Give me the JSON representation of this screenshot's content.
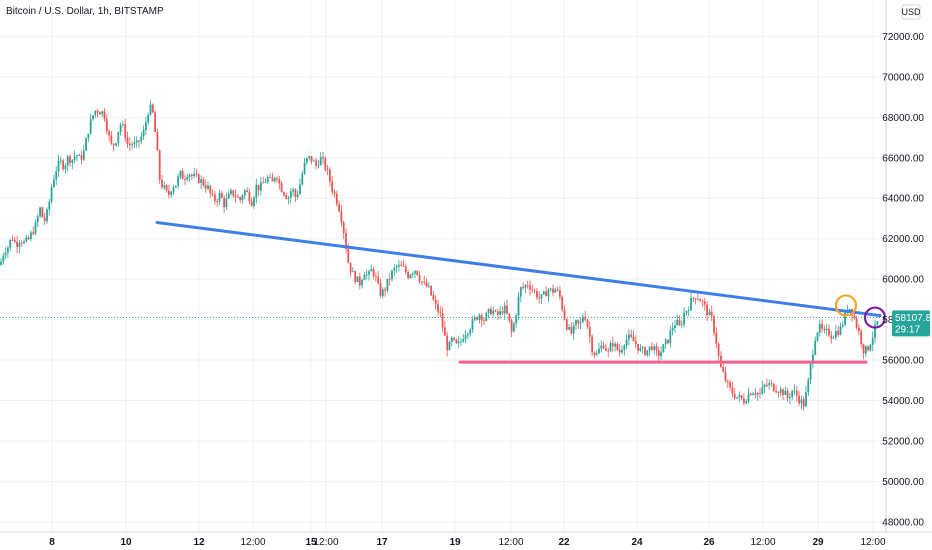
{
  "title": "Bitcoin / U.S. Dollar, 1h, BITSTAMP",
  "currency_label": "USD",
  "colors": {
    "up": "#26a69a",
    "down": "#ef5350",
    "trendline": "#3f7ee8",
    "support": "#f06292",
    "orange_circle": "#f5a623",
    "purple_circle": "#7b1fa2",
    "price_tag": "#26a69a",
    "grid": "#eef0f3",
    "axis_text": "#131722"
  },
  "price_tag": {
    "price": "58107.82",
    "countdown": "29:17"
  },
  "chart_data": {
    "type": "candlestick",
    "title": "Bitcoin / U.S. Dollar, 1h, BITSTAMP",
    "y_ticks": [
      "48000.00",
      "50000.00",
      "52000.00",
      "54000.00",
      "56000.00",
      "58000.00",
      "60000.00",
      "62000.00",
      "64000.00",
      "66000.00",
      "68000.00",
      "70000.00",
      "72000.00"
    ],
    "x_ticks": [
      "8",
      "10",
      "12",
      "12:00",
      "15",
      "12:00",
      "17",
      "19",
      "12:00",
      "22",
      "24",
      "26",
      "12:00",
      "29",
      "12:00"
    ],
    "ylim": [
      47500,
      73800
    ],
    "grid": true,
    "last_price": 58107.82,
    "lines": [
      {
        "name": "trendline",
        "from": [
          "10",
          62800
        ],
        "to": [
          "12:00",
          58200
        ]
      },
      {
        "name": "support",
        "from": [
          "19",
          55900
        ],
        "to": [
          "12:00",
          55900
        ]
      }
    ],
    "markers": [
      {
        "name": "orange-circle",
        "at": [
          "29",
          58700
        ]
      },
      {
        "name": "purple-circle",
        "at": [
          "12:00",
          58100
        ]
      }
    ],
    "price_path": [
      [
        0,
        60700
      ],
      [
        4,
        61400
      ],
      [
        8,
        61600
      ],
      [
        12,
        62100
      ],
      [
        16,
        61700
      ],
      [
        20,
        62000
      ],
      [
        24,
        61800
      ],
      [
        28,
        61900
      ],
      [
        32,
        62300
      ],
      [
        36,
        62700
      ],
      [
        40,
        63500
      ],
      [
        44,
        62800
      ],
      [
        48,
        63400
      ],
      [
        52,
        64700
      ],
      [
        56,
        65400
      ],
      [
        60,
        65800
      ],
      [
        64,
        65600
      ],
      [
        68,
        66000
      ],
      [
        72,
        65900
      ],
      [
        76,
        66200
      ],
      [
        80,
        65900
      ],
      [
        84,
        66300
      ],
      [
        88,
        67300
      ],
      [
        92,
        68000
      ],
      [
        96,
        68400
      ],
      [
        100,
        68300
      ],
      [
        104,
        68200
      ],
      [
        108,
        67200
      ],
      [
        112,
        66500
      ],
      [
        116,
        66900
      ],
      [
        120,
        67700
      ],
      [
        124,
        67400
      ],
      [
        128,
        66600
      ],
      [
        132,
        66700
      ],
      [
        136,
        66600
      ],
      [
        140,
        66900
      ],
      [
        144,
        67300
      ],
      [
        148,
        68300
      ],
      [
        152,
        68500
      ],
      [
        156,
        66900
      ],
      [
        160,
        64800
      ],
      [
        164,
        64500
      ],
      [
        168,
        64100
      ],
      [
        172,
        64600
      ],
      [
        176,
        64700
      ],
      [
        180,
        65200
      ],
      [
        184,
        65000
      ],
      [
        188,
        65300
      ],
      [
        192,
        65100
      ],
      [
        196,
        65000
      ],
      [
        200,
        64900
      ],
      [
        204,
        64700
      ],
      [
        208,
        64500
      ],
      [
        212,
        64000
      ],
      [
        216,
        63900
      ],
      [
        220,
        64200
      ],
      [
        224,
        63700
      ],
      [
        228,
        64000
      ],
      [
        232,
        64300
      ],
      [
        236,
        64100
      ],
      [
        240,
        63900
      ],
      [
        244,
        64400
      ],
      [
        248,
        64200
      ],
      [
        252,
        63800
      ],
      [
        256,
        64600
      ],
      [
        260,
        64500
      ],
      [
        264,
        64800
      ],
      [
        268,
        65000
      ],
      [
        272,
        64700
      ],
      [
        276,
        65300
      ],
      [
        280,
        64600
      ],
      [
        284,
        64300
      ],
      [
        288,
        64000
      ],
      [
        292,
        64500
      ],
      [
        296,
        64000
      ],
      [
        300,
        64700
      ],
      [
        304,
        65600
      ],
      [
        308,
        66000
      ],
      [
        312,
        65900
      ],
      [
        316,
        65600
      ],
      [
        320,
        66000
      ],
      [
        324,
        65700
      ],
      [
        328,
        65200
      ],
      [
        332,
        64500
      ],
      [
        336,
        64000
      ],
      [
        340,
        63400
      ],
      [
        344,
        62300
      ],
      [
        348,
        60900
      ],
      [
        352,
        60300
      ],
      [
        356,
        60000
      ],
      [
        360,
        59800
      ],
      [
        364,
        60400
      ],
      [
        368,
        60100
      ],
      [
        372,
        60500
      ],
      [
        376,
        60000
      ],
      [
        380,
        59300
      ],
      [
        384,
        59400
      ],
      [
        388,
        59900
      ],
      [
        392,
        60300
      ],
      [
        396,
        60600
      ],
      [
        400,
        60600
      ],
      [
        404,
        60500
      ],
      [
        408,
        60200
      ],
      [
        412,
        60400
      ],
      [
        416,
        60500
      ],
      [
        420,
        60000
      ],
      [
        424,
        59700
      ],
      [
        428,
        59600
      ],
      [
        432,
        59100
      ],
      [
        436,
        58600
      ],
      [
        440,
        58300
      ],
      [
        444,
        57300
      ],
      [
        448,
        56500
      ],
      [
        452,
        57000
      ],
      [
        456,
        56700
      ],
      [
        460,
        56800
      ],
      [
        464,
        57300
      ],
      [
        468,
        57500
      ],
      [
        472,
        57800
      ],
      [
        476,
        58100
      ],
      [
        480,
        58300
      ],
      [
        484,
        58000
      ],
      [
        488,
        58300
      ],
      [
        492,
        58500
      ],
      [
        496,
        58200
      ],
      [
        500,
        58300
      ],
      [
        504,
        58600
      ],
      [
        508,
        58100
      ],
      [
        512,
        57300
      ],
      [
        516,
        58300
      ],
      [
        520,
        59500
      ],
      [
        524,
        59600
      ],
      [
        528,
        59800
      ],
      [
        532,
        59500
      ],
      [
        536,
        59300
      ],
      [
        540,
        59000
      ],
      [
        544,
        59200
      ],
      [
        548,
        59500
      ],
      [
        552,
        59400
      ],
      [
        556,
        59500
      ],
      [
        560,
        59100
      ],
      [
        564,
        58200
      ],
      [
        568,
        57500
      ],
      [
        572,
        57300
      ],
      [
        576,
        57800
      ],
      [
        580,
        57700
      ],
      [
        584,
        58400
      ],
      [
        588,
        57600
      ],
      [
        592,
        56600
      ],
      [
        596,
        56200
      ],
      [
        600,
        56600
      ],
      [
        604,
        56800
      ],
      [
        608,
        56300
      ],
      [
        612,
        56900
      ],
      [
        616,
        56600
      ],
      [
        620,
        56400
      ],
      [
        624,
        56900
      ],
      [
        628,
        57100
      ],
      [
        632,
        57000
      ],
      [
        636,
        56800
      ],
      [
        640,
        56500
      ],
      [
        644,
        56400
      ],
      [
        648,
        56500
      ],
      [
        652,
        56700
      ],
      [
        656,
        56300
      ],
      [
        660,
        56300
      ],
      [
        664,
        56700
      ],
      [
        668,
        57000
      ],
      [
        672,
        57600
      ],
      [
        676,
        57900
      ],
      [
        680,
        57600
      ],
      [
        684,
        58300
      ],
      [
        688,
        58600
      ],
      [
        692,
        59000
      ],
      [
        696,
        59200
      ],
      [
        700,
        59000
      ],
      [
        704,
        58700
      ],
      [
        708,
        58300
      ],
      [
        712,
        58000
      ],
      [
        716,
        57000
      ],
      [
        720,
        55700
      ],
      [
        724,
        55200
      ],
      [
        728,
        54700
      ],
      [
        732,
        54400
      ],
      [
        736,
        54200
      ],
      [
        740,
        54100
      ],
      [
        744,
        54000
      ],
      [
        748,
        54300
      ],
      [
        752,
        54500
      ],
      [
        756,
        54400
      ],
      [
        760,
        54300
      ],
      [
        764,
        54700
      ],
      [
        768,
        54800
      ],
      [
        772,
        54700
      ],
      [
        776,
        54600
      ],
      [
        780,
        54500
      ],
      [
        784,
        54400
      ],
      [
        788,
        54100
      ],
      [
        792,
        54500
      ],
      [
        796,
        54300
      ],
      [
        800,
        54000
      ],
      [
        804,
        53800
      ],
      [
        808,
        54800
      ],
      [
        812,
        56200
      ],
      [
        816,
        57400
      ],
      [
        820,
        57600
      ],
      [
        824,
        57300
      ],
      [
        828,
        57400
      ],
      [
        832,
        57200
      ],
      [
        836,
        57400
      ],
      [
        840,
        57500
      ],
      [
        844,
        58000
      ],
      [
        848,
        58700
      ],
      [
        852,
        58400
      ],
      [
        856,
        57800
      ],
      [
        860,
        57200
      ],
      [
        864,
        56400
      ],
      [
        868,
        56600
      ],
      [
        872,
        57100
      ],
      [
        876,
        57700
      ],
      [
        880,
        58100
      ]
    ]
  }
}
